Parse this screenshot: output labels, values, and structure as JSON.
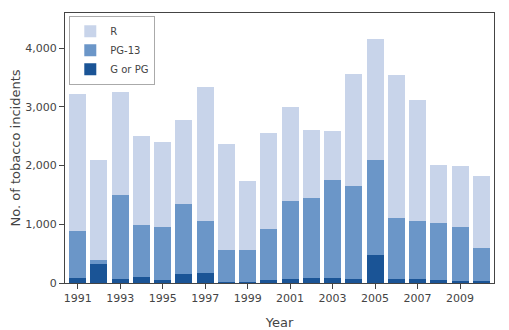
{
  "chart_data": {
    "type": "bar",
    "stacked": true,
    "x": [
      1991,
      1992,
      1993,
      1994,
      1995,
      1996,
      1997,
      1998,
      1999,
      2000,
      2001,
      2002,
      2003,
      2004,
      2005,
      2006,
      2007,
      2008,
      2009,
      2010
    ],
    "series": [
      {
        "name": "G or PG",
        "color": "#1a5496",
        "values": [
          80,
          320,
          70,
          100,
          50,
          150,
          170,
          20,
          20,
          50,
          60,
          80,
          80,
          60,
          472,
          60,
          60,
          50,
          40,
          30
        ]
      },
      {
        "name": "PG-13",
        "color": "#6b96c8",
        "values": [
          800,
          80,
          1430,
          890,
          900,
          1200,
          880,
          550,
          550,
          870,
          1330,
          1370,
          1680,
          1600,
          1621,
          1050,
          1000,
          980,
          910,
          565
        ]
      },
      {
        "name": "R",
        "color": "#c8d4ea",
        "values": [
          2340,
          1700,
          1760,
          1510,
          1450,
          1430,
          2290,
          1800,
          1170,
          1630,
          1610,
          1150,
          830,
          1900,
          2059,
          2440,
          2060,
          980,
          1050,
          1230
        ]
      }
    ],
    "xlabel": "Year",
    "ylabel": "No. of tobacco incidents",
    "xlim": [
      1990.4,
      2010.6
    ],
    "xticks": [
      1991,
      1993,
      1995,
      1997,
      1999,
      2001,
      2003,
      2005,
      2007,
      2009
    ],
    "ylim": [
      0,
      4600
    ],
    "yticks": [
      0,
      {
        "value": 1000,
        "label": "1,000"
      },
      {
        "value": 2000,
        "label": "2,000"
      },
      {
        "value": 3000,
        "label": "3,000"
      },
      {
        "value": 4000,
        "label": "4,000"
      }
    ],
    "grid": false,
    "legend": "upper left"
  }
}
